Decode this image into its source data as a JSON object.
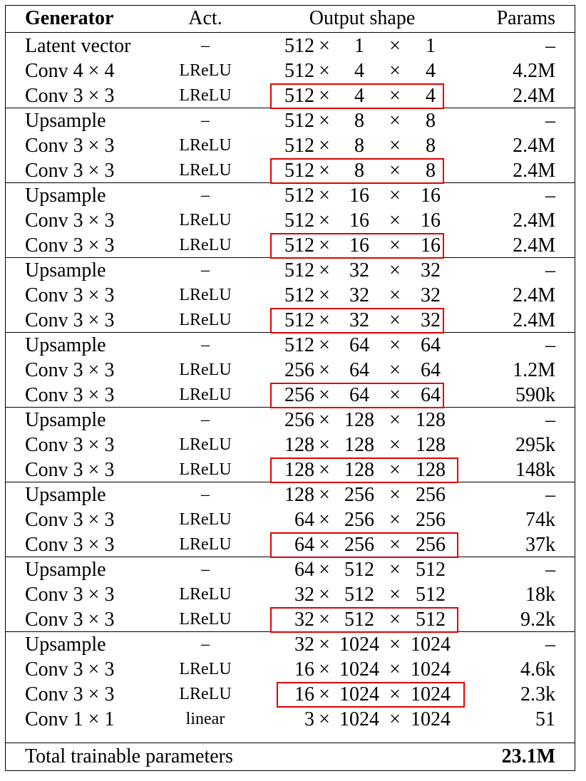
{
  "header": {
    "generator": "Generator",
    "act": "Act.",
    "output_shape": "Output shape",
    "params": "Params"
  },
  "rows": [
    {
      "name": "Latent vector",
      "act": "–",
      "d1": "512",
      "d2": "1",
      "d3": "1",
      "params": "–"
    },
    {
      "name": "Conv 4 × 4",
      "act": "LReLU",
      "d1": "512",
      "d2": "4",
      "d3": "4",
      "params": "4.2M"
    },
    {
      "name": "Conv 3 × 3",
      "act": "LReLU",
      "d1": "512",
      "d2": "4",
      "d3": "4",
      "params": "2.4M"
    },
    {
      "name": "Upsample",
      "act": "–",
      "d1": "512",
      "d2": "8",
      "d3": "8",
      "params": "–"
    },
    {
      "name": "Conv 3 × 3",
      "act": "LReLU",
      "d1": "512",
      "d2": "8",
      "d3": "8",
      "params": "2.4M"
    },
    {
      "name": "Conv 3 × 3",
      "act": "LReLU",
      "d1": "512",
      "d2": "8",
      "d3": "8",
      "params": "2.4M"
    },
    {
      "name": "Upsample",
      "act": "–",
      "d1": "512",
      "d2": "16",
      "d3": "16",
      "params": "–"
    },
    {
      "name": "Conv 3 × 3",
      "act": "LReLU",
      "d1": "512",
      "d2": "16",
      "d3": "16",
      "params": "2.4M"
    },
    {
      "name": "Conv 3 × 3",
      "act": "LReLU",
      "d1": "512",
      "d2": "16",
      "d3": "16",
      "params": "2.4M"
    },
    {
      "name": "Upsample",
      "act": "–",
      "d1": "512",
      "d2": "32",
      "d3": "32",
      "params": "–"
    },
    {
      "name": "Conv 3 × 3",
      "act": "LReLU",
      "d1": "512",
      "d2": "32",
      "d3": "32",
      "params": "2.4M"
    },
    {
      "name": "Conv 3 × 3",
      "act": "LReLU",
      "d1": "512",
      "d2": "32",
      "d3": "32",
      "params": "2.4M"
    },
    {
      "name": "Upsample",
      "act": "–",
      "d1": "512",
      "d2": "64",
      "d3": "64",
      "params": "–"
    },
    {
      "name": "Conv 3 × 3",
      "act": "LReLU",
      "d1": "256",
      "d2": "64",
      "d3": "64",
      "params": "1.2M"
    },
    {
      "name": "Conv 3 × 3",
      "act": "LReLU",
      "d1": "256",
      "d2": "64",
      "d3": "64",
      "params": "590k"
    },
    {
      "name": "Upsample",
      "act": "–",
      "d1": "256",
      "d2": "128",
      "d3": "128",
      "params": "–"
    },
    {
      "name": "Conv 3 × 3",
      "act": "LReLU",
      "d1": "128",
      "d2": "128",
      "d3": "128",
      "params": "295k"
    },
    {
      "name": "Conv 3 × 3",
      "act": "LReLU",
      "d1": "128",
      "d2": "128",
      "d3": "128",
      "params": "148k"
    },
    {
      "name": "Upsample",
      "act": "–",
      "d1": "128",
      "d2": "256",
      "d3": "256",
      "params": "–"
    },
    {
      "name": "Conv 3 × 3",
      "act": "LReLU",
      "d1": "64",
      "d2": "256",
      "d3": "256",
      "params": "74k"
    },
    {
      "name": "Conv 3 × 3",
      "act": "LReLU",
      "d1": "64",
      "d2": "256",
      "d3": "256",
      "params": "37k"
    },
    {
      "name": "Upsample",
      "act": "–",
      "d1": "64",
      "d2": "512",
      "d3": "512",
      "params": "–"
    },
    {
      "name": "Conv 3 × 3",
      "act": "LReLU",
      "d1": "32",
      "d2": "512",
      "d3": "512",
      "params": "18k"
    },
    {
      "name": "Conv 3 × 3",
      "act": "LReLU",
      "d1": "32",
      "d2": "512",
      "d3": "512",
      "params": "9.2k"
    },
    {
      "name": "Upsample",
      "act": "–",
      "d1": "32",
      "d2": "1024",
      "d3": "1024",
      "params": "–"
    },
    {
      "name": "Conv 3 × 3",
      "act": "LReLU",
      "d1": "16",
      "d2": "1024",
      "d3": "1024",
      "params": "4.6k"
    },
    {
      "name": "Conv 3 × 3",
      "act": "LReLU",
      "d1": "16",
      "d2": "1024",
      "d3": "1024",
      "params": "2.3k"
    },
    {
      "name": "Conv 1 × 1",
      "act": "linear",
      "d1": "3",
      "d2": "1024",
      "d3": "1024",
      "params": "51"
    }
  ],
  "times_symbol": "×",
  "group_breaks_after_rows": [
    0,
    3,
    6,
    9,
    12,
    15,
    18,
    21,
    24
  ],
  "highlighted_rows": [
    2,
    5,
    8,
    11,
    14,
    17,
    20,
    23,
    26
  ],
  "highlight_color": "#e00000",
  "footer": {
    "label": "Total trainable parameters",
    "total": "23.1M"
  }
}
